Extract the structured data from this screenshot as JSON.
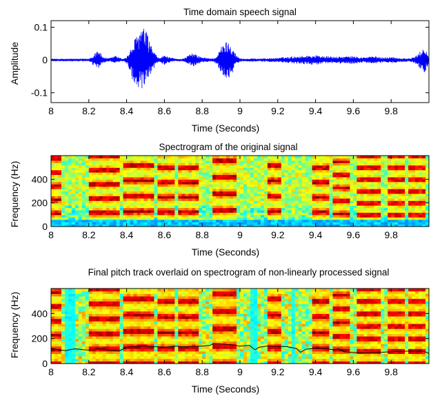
{
  "chart_data": [
    {
      "type": "line",
      "title": "Time domain speech signal",
      "xlabel": "Time (Seconds)",
      "ylabel": "Amplitude",
      "xlim": [
        8,
        10
      ],
      "ylim": [
        -0.13,
        0.12
      ],
      "xticks": [
        "8",
        "8.2",
        "8.4",
        "8.6",
        "8.8",
        "9",
        "9.2",
        "9.4",
        "9.6",
        "9.8"
      ],
      "yticks": [
        "-0.1",
        "0",
        "0.1"
      ],
      "color": "#0000ff",
      "envelope": {
        "x": [
          8.0,
          8.2,
          8.22,
          8.25,
          8.27,
          8.3,
          8.32,
          8.34,
          8.36,
          8.38,
          8.4,
          8.42,
          8.44,
          8.46,
          8.48,
          8.5,
          8.52,
          8.55,
          8.57,
          8.6,
          8.63,
          8.66,
          8.7,
          8.72,
          8.75,
          8.8,
          8.86,
          8.88,
          8.9,
          8.92,
          8.94,
          8.96,
          8.98,
          9.0,
          9.02,
          9.1,
          9.18,
          9.22,
          9.3,
          9.4,
          9.45,
          9.5,
          9.6,
          9.65,
          9.7,
          9.75,
          9.8,
          9.85,
          9.9,
          9.93,
          9.96,
          9.98,
          10.0
        ],
        "upper": [
          0.004,
          0.004,
          0.012,
          0.038,
          0.012,
          0.005,
          0.008,
          0.015,
          0.008,
          0.004,
          0.01,
          0.03,
          0.06,
          0.085,
          0.102,
          0.095,
          0.06,
          0.02,
          0.006,
          0.015,
          0.008,
          0.004,
          0.004,
          0.012,
          0.022,
          0.008,
          0.005,
          0.015,
          0.04,
          0.055,
          0.06,
          0.045,
          0.015,
          0.006,
          0.004,
          0.005,
          0.006,
          0.008,
          0.012,
          0.015,
          0.012,
          0.01,
          0.012,
          0.008,
          0.012,
          0.008,
          0.01,
          0.006,
          0.005,
          0.012,
          0.03,
          0.045,
          0.005
        ],
        "lower": [
          -0.004,
          -0.004,
          -0.015,
          -0.03,
          -0.01,
          -0.005,
          -0.007,
          -0.012,
          -0.006,
          -0.004,
          -0.01,
          -0.04,
          -0.075,
          -0.09,
          -0.1,
          -0.09,
          -0.055,
          -0.02,
          -0.006,
          -0.015,
          -0.008,
          -0.004,
          -0.004,
          -0.01,
          -0.02,
          -0.007,
          -0.005,
          -0.015,
          -0.04,
          -0.06,
          -0.055,
          -0.04,
          -0.012,
          -0.006,
          -0.004,
          -0.005,
          -0.006,
          -0.008,
          -0.012,
          -0.015,
          -0.012,
          -0.01,
          -0.012,
          -0.008,
          -0.012,
          -0.008,
          -0.01,
          -0.006,
          -0.005,
          -0.012,
          -0.03,
          -0.04,
          -0.005
        ]
      }
    },
    {
      "type": "heatmap",
      "title": "Spectrogram of the original signal",
      "xlabel": "Time (Seconds)",
      "ylabel": "Frequency (Hz)",
      "xlim": [
        8,
        10
      ],
      "ylim": [
        0,
        600
      ],
      "xticks": [
        "8",
        "8.2",
        "8.4",
        "8.6",
        "8.8",
        "9",
        "9.2",
        "9.4",
        "9.6",
        "9.8"
      ],
      "yticks": [
        "0",
        "200",
        "400"
      ],
      "colormap": "jet",
      "voiced_segments": [
        {
          "start": 8.0,
          "end": 8.06,
          "f0": 115
        },
        {
          "start": 8.2,
          "end": 8.3,
          "f0": 120
        },
        {
          "start": 8.31,
          "end": 8.37,
          "f0": 120
        },
        {
          "start": 8.39,
          "end": 8.55,
          "f0": 130
        },
        {
          "start": 8.56,
          "end": 8.66,
          "f0": 125
        },
        {
          "start": 8.68,
          "end": 8.78,
          "f0": 125
        },
        {
          "start": 8.86,
          "end": 8.98,
          "f0": 140
        },
        {
          "start": 9.14,
          "end": 9.22,
          "f0": 130
        },
        {
          "start": 9.38,
          "end": 9.48,
          "f0": 125
        },
        {
          "start": 9.5,
          "end": 9.58,
          "f0": 110
        },
        {
          "start": 9.62,
          "end": 9.74,
          "f0": 100
        },
        {
          "start": 9.78,
          "end": 9.88,
          "f0": 100
        },
        {
          "start": 9.89,
          "end": 9.99,
          "f0": 100
        }
      ]
    },
    {
      "type": "heatmap",
      "title": "Final pitch track overlaid on spectrogram of non-linearly processed signal",
      "xlabel": "Time (Seconds)",
      "ylabel": "Frequency (Hz)",
      "xlim": [
        8,
        10
      ],
      "ylim": [
        0,
        600
      ],
      "xticks": [
        "8",
        "8.2",
        "8.4",
        "8.6",
        "8.8",
        "9",
        "9.2",
        "9.4",
        "9.6",
        "9.8"
      ],
      "yticks": [
        "0",
        "200",
        "400"
      ],
      "colormap": "jet",
      "pitch_track": {
        "color": "#000000",
        "x": [
          8.0,
          8.02,
          8.05,
          8.08,
          8.1,
          8.13,
          8.16,
          8.2,
          8.23,
          8.26,
          8.3,
          8.33,
          8.36,
          8.4,
          8.45,
          8.5,
          8.55,
          8.6,
          8.65,
          8.7,
          8.75,
          8.8,
          8.84,
          8.86,
          8.9,
          8.95,
          9.0,
          9.05,
          9.08,
          9.1,
          9.15,
          9.2,
          9.25,
          9.3,
          9.32,
          9.35,
          9.4,
          9.45,
          9.5,
          9.52,
          9.55,
          9.6,
          9.65,
          9.7,
          9.75,
          9.8,
          9.85,
          9.9,
          9.95,
          9.98,
          10.0
        ],
        "y": [
          120,
          118,
          108,
          103,
          112,
          118,
          112,
          108,
          115,
          118,
          110,
          105,
          100,
          130,
          138,
          142,
          135,
          130,
          140,
          135,
          138,
          140,
          145,
          160,
          158,
          150,
          140,
          145,
          110,
          130,
          142,
          138,
          135,
          120,
          90,
          115,
          122,
          118,
          110,
          120,
          95,
          88,
          85,
          88,
          90,
          95,
          98,
          100,
          100,
          95,
          80
        ]
      }
    }
  ]
}
